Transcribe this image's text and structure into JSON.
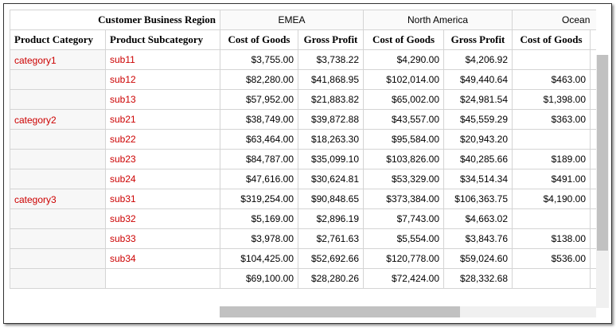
{
  "header": {
    "region_label": "Customer Business Region",
    "regions": [
      "EMEA",
      "North America",
      "Ocean"
    ],
    "product_category": "Product Category",
    "product_subcategory": "Product Subcategory",
    "measures": [
      "Cost of Goods",
      "Gross Profit",
      "Cost of Goods",
      "Gross Profit",
      "Cost of Goods"
    ]
  },
  "rows": [
    {
      "category": "category1",
      "sub": "sub11",
      "v": [
        "$3,755.00",
        "$3,738.22",
        "$4,290.00",
        "$4,206.92",
        ""
      ]
    },
    {
      "category": "",
      "sub": "sub12",
      "v": [
        "$82,280.00",
        "$41,868.95",
        "$102,014.00",
        "$49,440.64",
        "$463.00"
      ]
    },
    {
      "category": "",
      "sub": "sub13",
      "v": [
        "$57,952.00",
        "$21,883.82",
        "$65,002.00",
        "$24,981.54",
        "$1,398.00"
      ]
    },
    {
      "category": "category2",
      "sub": "sub21",
      "v": [
        "$38,749.00",
        "$39,872.88",
        "$43,557.00",
        "$45,559.29",
        "$363.00"
      ]
    },
    {
      "category": "",
      "sub": "sub22",
      "v": [
        "$63,464.00",
        "$18,263.30",
        "$95,584.00",
        "$20,943.20",
        ""
      ]
    },
    {
      "category": "",
      "sub": "sub23",
      "v": [
        "$84,787.00",
        "$35,099.10",
        "$103,826.00",
        "$40,285.66",
        "$189.00"
      ]
    },
    {
      "category": "",
      "sub": "sub24",
      "v": [
        "$47,616.00",
        "$30,624.81",
        "$53,329.00",
        "$34,514.34",
        "$491.00"
      ]
    },
    {
      "category": "category3",
      "sub": "sub31",
      "v": [
        "$319,254.00",
        "$90,848.65",
        "$373,384.00",
        "$106,363.75",
        "$4,190.00"
      ]
    },
    {
      "category": "",
      "sub": "sub32",
      "v": [
        "$5,169.00",
        "$2,896.19",
        "$7,743.00",
        "$4,663.02",
        ""
      ]
    },
    {
      "category": "",
      "sub": "sub33",
      "v": [
        "$3,978.00",
        "$2,761.63",
        "$5,554.00",
        "$3,843.76",
        "$138.00"
      ]
    },
    {
      "category": "",
      "sub": "sub34",
      "v": [
        "$104,425.00",
        "$52,692.66",
        "$120,778.00",
        "$59,024.60",
        "$536.00"
      ]
    },
    {
      "category": "",
      "sub": "",
      "v": [
        "$69,100.00",
        "$28,280.26",
        "$72,424.00",
        "$28,332.68",
        ""
      ]
    }
  ]
}
